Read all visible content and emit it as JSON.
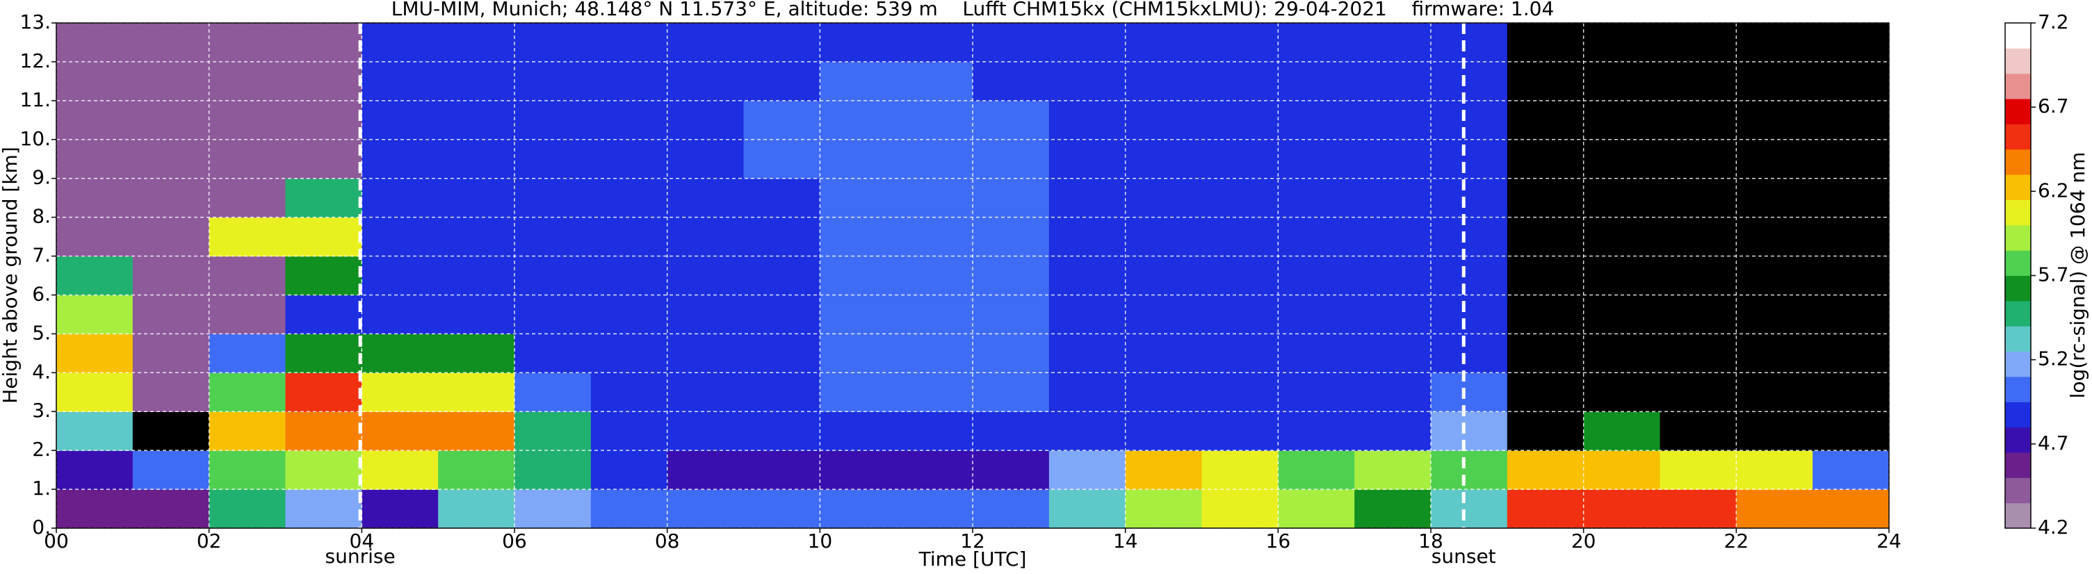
{
  "chart_data": {
    "type": "ceilometer",
    "title": "LMU-MIM, Munich; 48.148° N 11.573° E, altitude: 539 m    Lufft CHM15kx (CHM15kxLMU): 29-04-2021    firmware: 1.04",
    "x_label": "Time [UTC]",
    "y_label": "Height above ground [km]",
    "colorbar_label": "log(rc-signal) @ 1064 nm",
    "xlim": [
      0,
      24
    ],
    "ylim": [
      0,
      13
    ],
    "xticks": [
      {
        "value": 0,
        "label": "00"
      },
      {
        "value": 2,
        "label": "02"
      },
      {
        "value": 4,
        "label": "04"
      },
      {
        "value": 6,
        "label": "06"
      },
      {
        "value": 8,
        "label": "08"
      },
      10,
      12,
      14,
      16,
      18,
      20,
      22,
      24
    ],
    "yticks": [
      {
        "value": 0,
        "label": "0."
      },
      {
        "value": 1,
        "label": "1."
      },
      {
        "value": 2,
        "label": "2."
      },
      {
        "value": 3,
        "label": "3."
      },
      {
        "value": 4,
        "label": "4."
      },
      {
        "value": 5,
        "label": "5."
      },
      {
        "value": 6,
        "label": "6."
      },
      {
        "value": 7,
        "label": "7."
      },
      {
        "value": 8,
        "label": "8."
      },
      {
        "value": 9,
        "label": "9."
      },
      {
        "value": 10,
        "label": "10."
      },
      {
        "value": 11,
        "label": "11."
      },
      {
        "value": 12,
        "label": "12."
      },
      {
        "value": 13,
        "label": "13."
      }
    ],
    "grid": true,
    "clim": [
      4.2,
      7.2
    ],
    "cticks": [
      4.2,
      4.7,
      5.2,
      5.7,
      6.2,
      6.7,
      7.2
    ],
    "under_color": "#000000",
    "colormap": [
      "#a98fae",
      "#8e5a9a",
      "#6a1f8a",
      "#3a0fb0",
      "#1d2fe0",
      "#3f6cf5",
      "#7fa8f8",
      "#5fc8c8",
      "#20b070",
      "#109020",
      "#50d050",
      "#a8ee40",
      "#e8f020",
      "#f8c000",
      "#f88000",
      "#f03010",
      "#e00000",
      "#e89090",
      "#f0c8c8",
      "#ffffff"
    ],
    "sun_events": [
      {
        "x": 3.98,
        "label": "sunrise"
      },
      {
        "x": 18.43,
        "label": "sunset"
      }
    ],
    "z": [
      [
        4.6,
        4.6,
        5.4,
        5.2,
        4.8,
        5.3,
        5.2,
        5.0,
        5.0,
        5.0,
        5.0,
        5.0,
        5.0,
        5.3,
        5.9,
        6.1,
        5.9,
        5.6,
        5.3,
        6.5,
        6.6,
        6.5,
        6.4,
        6.4
      ],
      [
        4.8,
        5.1,
        5.7,
        5.9,
        6.0,
        5.8,
        5.5,
        4.9,
        4.8,
        4.8,
        4.8,
        4.8,
        4.8,
        5.2,
        6.2,
        6.1,
        5.8,
        5.9,
        5.7,
        6.3,
        6.2,
        6.0,
        6.0,
        5.0
      ],
      [
        5.3,
        4.0,
        6.2,
        6.4,
        6.4,
        6.4,
        5.4,
        4.9,
        4.9,
        4.9,
        4.9,
        4.9,
        4.9,
        4.9,
        4.9,
        4.9,
        4.9,
        4.9,
        5.2,
        4.0,
        5.6,
        4.0,
        4.0,
        4.0
      ],
      [
        6.1,
        4.4,
        5.7,
        6.5,
        6.0,
        6.0,
        5.0,
        4.9,
        4.9,
        4.9,
        5.0,
        5.0,
        5.0,
        4.9,
        4.9,
        4.9,
        4.9,
        4.9,
        5.0,
        4.0,
        4.0,
        4.0,
        4.0,
        4.0
      ],
      [
        6.2,
        4.4,
        5.0,
        5.6,
        5.6,
        5.6,
        4.9,
        4.9,
        4.9,
        4.9,
        5.0,
        5.0,
        5.0,
        4.9,
        4.9,
        4.9,
        4.9,
        4.9,
        4.9,
        4.0,
        4.0,
        4.0,
        4.0,
        4.0
      ],
      [
        5.9,
        4.4,
        4.4,
        4.9,
        4.9,
        4.9,
        4.9,
        4.9,
        4.9,
        4.9,
        5.0,
        5.0,
        5.0,
        4.9,
        4.9,
        4.9,
        4.9,
        4.9,
        4.9,
        4.0,
        4.0,
        4.0,
        4.0,
        4.0
      ],
      [
        5.5,
        4.4,
        4.4,
        5.6,
        4.9,
        4.9,
        4.9,
        4.9,
        4.9,
        4.9,
        5.0,
        5.0,
        5.0,
        4.9,
        4.9,
        4.9,
        4.9,
        4.9,
        4.9,
        4.0,
        4.0,
        4.0,
        4.0,
        4.0
      ],
      [
        4.4,
        4.4,
        6.1,
        6.0,
        4.9,
        4.9,
        4.9,
        4.9,
        4.9,
        4.9,
        5.0,
        5.0,
        5.0,
        4.9,
        4.9,
        4.9,
        4.9,
        4.9,
        4.9,
        4.0,
        4.0,
        4.0,
        4.0,
        4.0
      ],
      [
        4.4,
        4.4,
        4.4,
        5.4,
        4.9,
        4.9,
        4.9,
        4.9,
        4.9,
        4.9,
        5.0,
        5.0,
        5.0,
        4.9,
        4.9,
        4.9,
        4.9,
        4.9,
        4.9,
        4.0,
        4.0,
        4.0,
        4.0,
        4.0
      ],
      [
        4.4,
        4.4,
        4.4,
        4.4,
        4.9,
        4.9,
        4.9,
        4.9,
        4.9,
        5.0,
        5.0,
        5.0,
        5.0,
        4.9,
        4.9,
        4.9,
        4.9,
        4.9,
        4.9,
        4.0,
        4.0,
        4.0,
        4.0,
        4.0
      ],
      [
        4.4,
        4.4,
        4.4,
        4.4,
        4.9,
        4.9,
        4.9,
        4.9,
        4.9,
        5.0,
        5.0,
        5.0,
        5.0,
        4.9,
        4.9,
        4.9,
        4.9,
        4.9,
        4.9,
        4.0,
        4.0,
        4.0,
        4.0,
        4.0
      ],
      [
        4.4,
        4.4,
        4.4,
        4.4,
        4.9,
        4.9,
        4.9,
        4.9,
        4.9,
        4.9,
        5.0,
        5.0,
        4.9,
        4.9,
        4.9,
        4.9,
        4.9,
        4.9,
        4.9,
        4.0,
        4.0,
        4.0,
        4.0,
        4.0
      ],
      [
        4.4,
        4.4,
        4.4,
        4.4,
        4.9,
        4.9,
        4.9,
        4.9,
        4.9,
        4.9,
        4.9,
        4.9,
        4.9,
        4.9,
        4.9,
        4.9,
        4.9,
        4.9,
        4.9,
        4.0,
        4.0,
        4.0,
        4.0,
        4.0
      ]
    ]
  }
}
